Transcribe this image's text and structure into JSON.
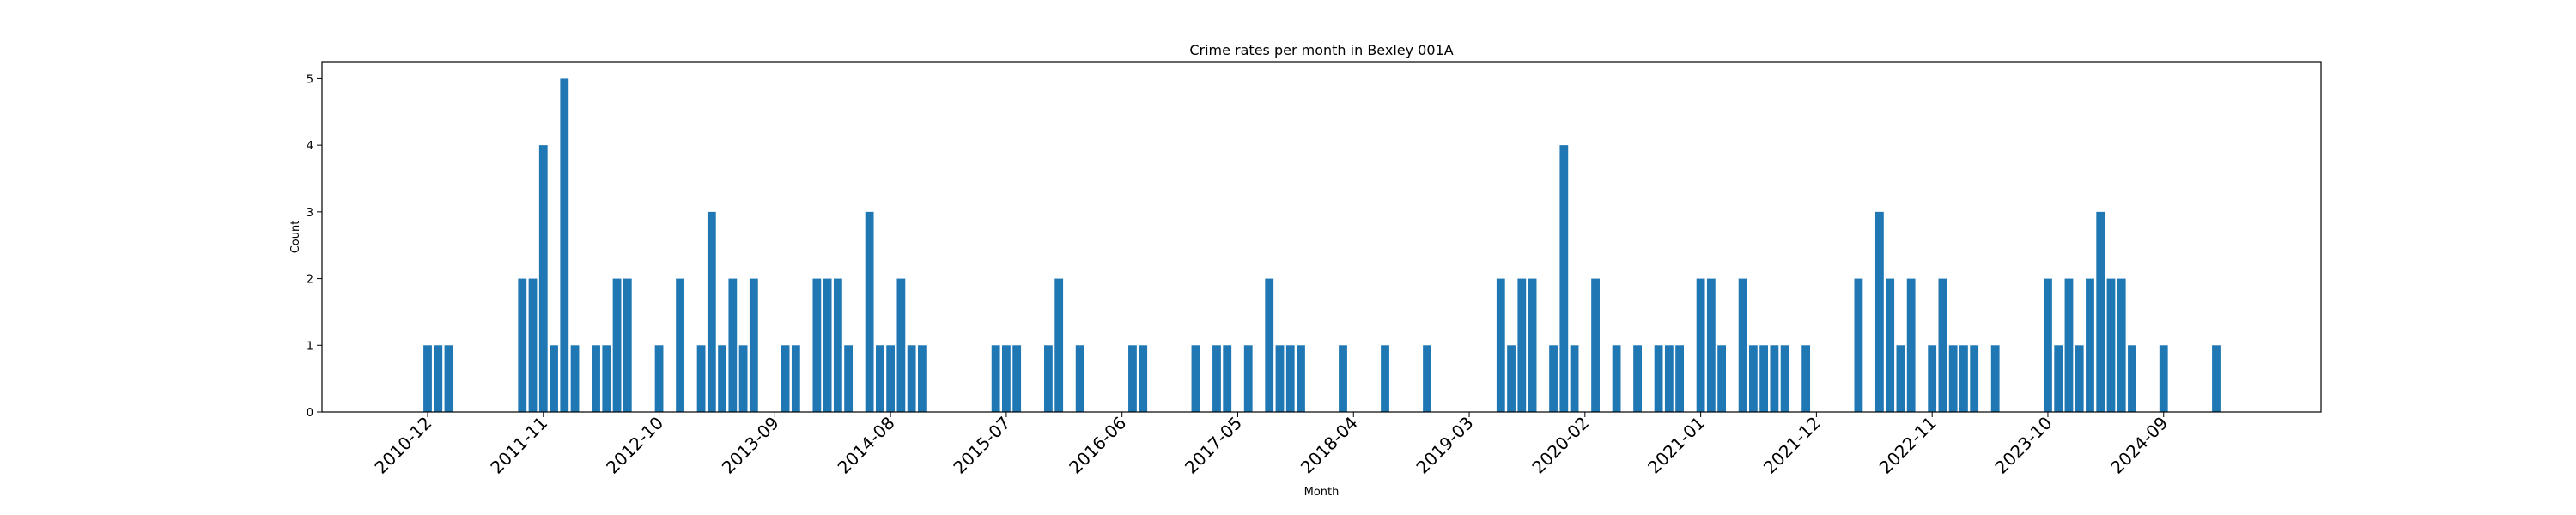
{
  "chart_data": {
    "type": "bar",
    "title": "Crime rates per month in Bexley 001A",
    "xlabel": "Month",
    "ylabel": "Count",
    "ylim": [
      0,
      5.25
    ],
    "y_ticks": [
      0,
      1,
      2,
      3,
      4,
      5
    ],
    "x_ticks": [
      "2010-12",
      "2011-11",
      "2012-10",
      "2013-09",
      "2014-08",
      "2015-07",
      "2016-06",
      "2017-05",
      "2018-04",
      "2019-03",
      "2020-02",
      "2021-01",
      "2021-12",
      "2022-11",
      "2023-10",
      "2024-09"
    ],
    "grid": false,
    "bar_color": "#1f77b4",
    "categories": [
      "2010-12",
      "2011-01",
      "2011-02",
      "2011-09",
      "2011-10",
      "2011-11",
      "2011-12",
      "2012-01",
      "2012-02",
      "2012-04",
      "2012-05",
      "2012-06",
      "2012-07",
      "2012-10",
      "2012-12",
      "2013-02",
      "2013-03",
      "2013-04",
      "2013-05",
      "2013-06",
      "2013-07",
      "2013-10",
      "2013-11",
      "2014-01",
      "2014-02",
      "2014-03",
      "2014-04",
      "2014-06",
      "2014-07",
      "2014-08",
      "2014-09",
      "2014-10",
      "2014-11",
      "2015-06",
      "2015-07",
      "2015-08",
      "2015-11",
      "2015-12",
      "2016-02",
      "2016-07",
      "2016-08",
      "2017-01",
      "2017-03",
      "2017-04",
      "2017-06",
      "2017-08",
      "2017-09",
      "2017-10",
      "2017-11",
      "2018-03",
      "2018-07",
      "2018-11",
      "2019-06",
      "2019-07",
      "2019-08",
      "2019-09",
      "2019-11",
      "2019-12",
      "2020-01",
      "2020-03",
      "2020-05",
      "2020-07",
      "2020-09",
      "2020-10",
      "2020-11",
      "2021-01",
      "2021-02",
      "2021-03",
      "2021-05",
      "2021-06",
      "2021-07",
      "2021-08",
      "2021-09",
      "2021-11",
      "2022-04",
      "2022-06",
      "2022-07",
      "2022-08",
      "2022-09",
      "2022-11",
      "2022-12",
      "2023-01",
      "2023-02",
      "2023-03",
      "2023-05",
      "2023-10",
      "2023-11",
      "2023-12",
      "2024-01",
      "2024-02",
      "2024-03",
      "2024-04",
      "2024-05",
      "2024-06",
      "2024-09",
      "2025-02"
    ],
    "values": [
      1,
      1,
      1,
      2,
      2,
      4,
      1,
      5,
      1,
      1,
      1,
      2,
      2,
      1,
      2,
      1,
      3,
      1,
      2,
      1,
      2,
      1,
      1,
      2,
      2,
      2,
      1,
      3,
      1,
      1,
      2,
      1,
      1,
      1,
      1,
      1,
      1,
      2,
      1,
      1,
      1,
      1,
      1,
      1,
      1,
      2,
      1,
      1,
      1,
      1,
      1,
      1,
      2,
      1,
      2,
      2,
      1,
      4,
      1,
      2,
      1,
      1,
      1,
      1,
      1,
      2,
      2,
      1,
      2,
      1,
      1,
      1,
      1,
      1,
      2,
      3,
      2,
      1,
      2,
      1,
      2,
      1,
      1,
      1,
      1,
      2,
      1,
      2,
      1,
      2,
      3,
      2,
      2,
      1,
      1,
      1
    ]
  }
}
